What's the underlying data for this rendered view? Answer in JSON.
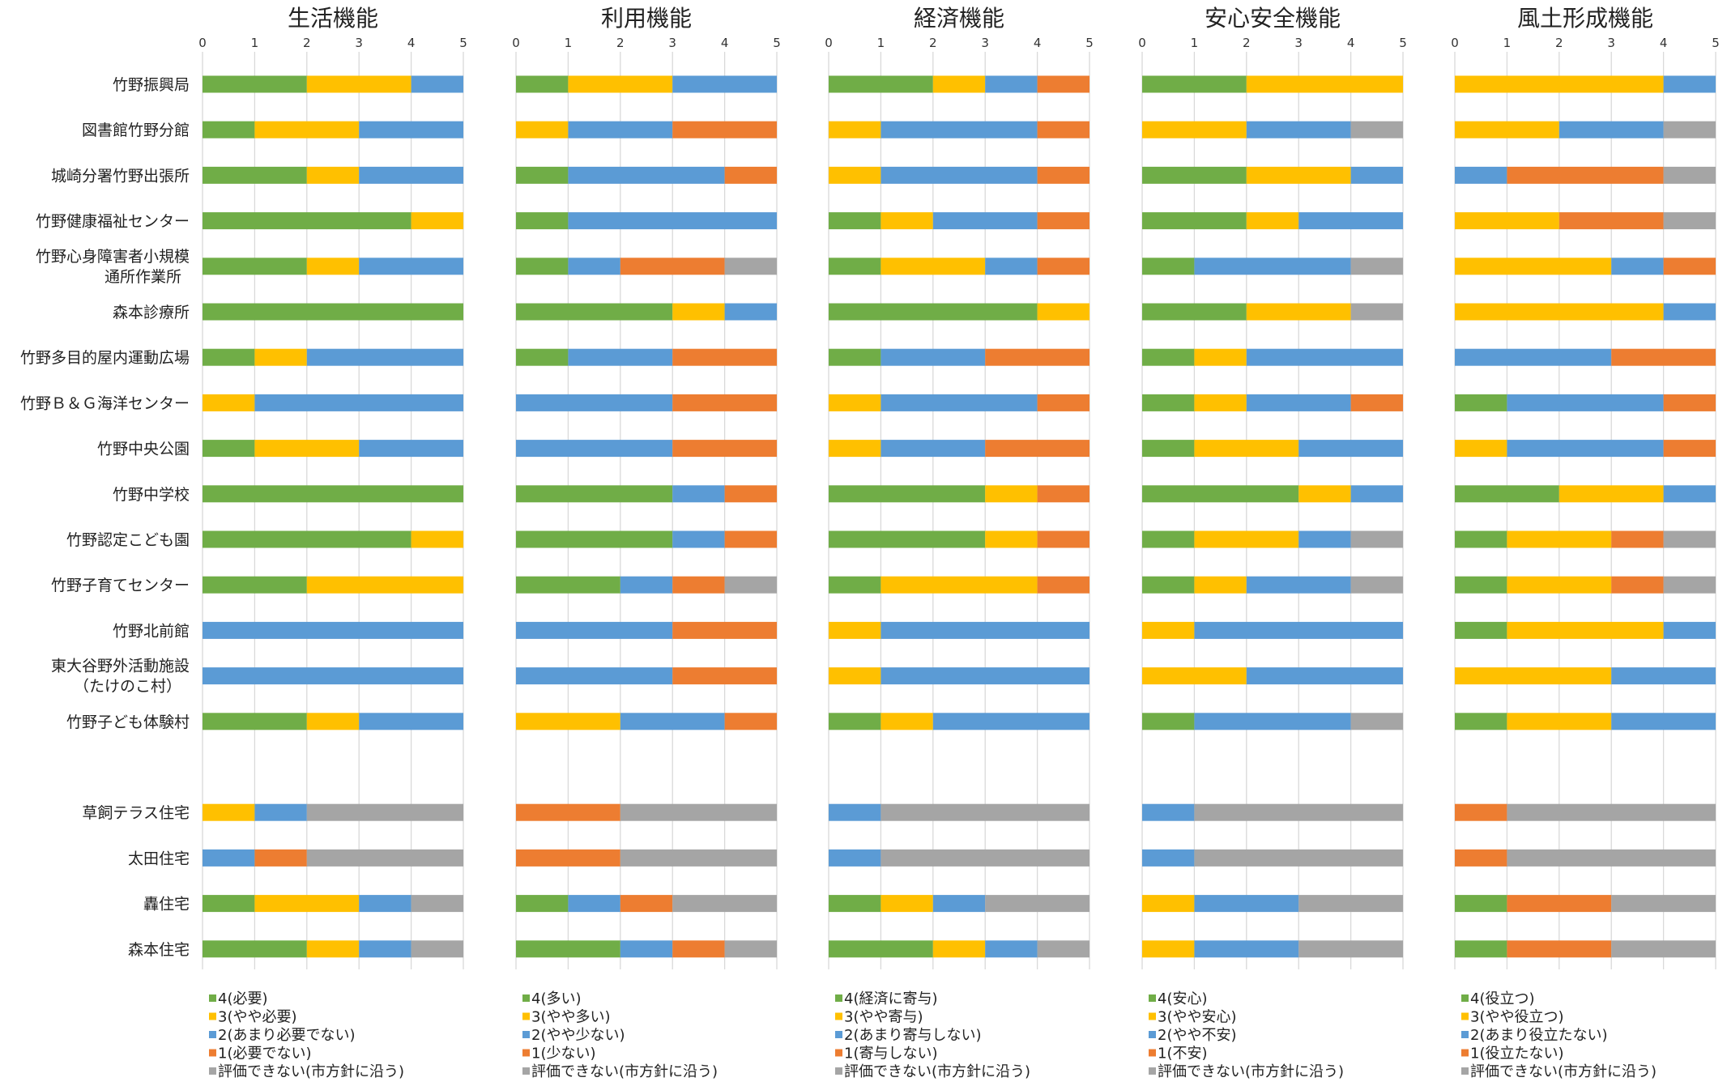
{
  "chart_data": {
    "type": "bar",
    "orientation": "horizontal",
    "stacked": true,
    "xlim": [
      0,
      5
    ],
    "ticks": [
      0,
      1,
      2,
      3,
      4,
      5
    ],
    "grid": true,
    "legend_position": "bottom",
    "colors": {
      "c4": "#70ad47",
      "c3": "#ffc000",
      "c2": "#5b9bd5",
      "c1": "#ed7d31",
      "na": "#a5a5a5"
    },
    "categories": [
      [
        "竹野振興局"
      ],
      [
        "図書館竹野分館"
      ],
      [
        "城崎分署竹野出張所"
      ],
      [
        "竹野健康福祉センター"
      ],
      [
        "竹野心身障害者小規模",
        "通所作業所"
      ],
      [
        "森本診療所"
      ],
      [
        "竹野多目的屋内運動広場"
      ],
      [
        "竹野Ｂ＆Ｇ海洋センター"
      ],
      [
        "竹野中央公園"
      ],
      [
        "竹野中学校"
      ],
      [
        "竹野認定こども園"
      ],
      [
        "竹野子育てセンター"
      ],
      [
        "竹野北前館"
      ],
      [
        "東大谷野外活動施設",
        "（たけのこ村）"
      ],
      [
        "竹野子ども体験村"
      ],
      [
        ""
      ],
      [
        "草飼テラス住宅"
      ],
      [
        "太田住宅"
      ],
      [
        "轟住宅"
      ],
      [
        "森本住宅"
      ]
    ],
    "panels": [
      {
        "title": "生活機能",
        "legend": [
          "4(必要)",
          "3(やや必要)",
          "2(あまり必要でない)",
          "1(必要でない)",
          "評価できない(市方針に沿う)"
        ],
        "data": [
          [
            2,
            2,
            1,
            0,
            0
          ],
          [
            1,
            2,
            2,
            0,
            0
          ],
          [
            2,
            1,
            2,
            0,
            0
          ],
          [
            4,
            1,
            0,
            0,
            0
          ],
          [
            2,
            1,
            2,
            0,
            0
          ],
          [
            5,
            0,
            0,
            0,
            0
          ],
          [
            1,
            1,
            3,
            0,
            0
          ],
          [
            0,
            1,
            4,
            0,
            0
          ],
          [
            1,
            2,
            2,
            0,
            0
          ],
          [
            5,
            0,
            0,
            0,
            0
          ],
          [
            4,
            1,
            0,
            0,
            0
          ],
          [
            2,
            3,
            0,
            0,
            0
          ],
          [
            0,
            0,
            5,
            0,
            0
          ],
          [
            0,
            0,
            5,
            0,
            0
          ],
          [
            2,
            1,
            2,
            0,
            0
          ],
          null,
          [
            0,
            1,
            1,
            0,
            3
          ],
          [
            0,
            0,
            1,
            1,
            3
          ],
          [
            1,
            2,
            1,
            0,
            1
          ],
          [
            2,
            1,
            1,
            0,
            1
          ]
        ]
      },
      {
        "title": "利用機能",
        "legend": [
          "4(多い)",
          "3(やや多い)",
          "2(やや少ない)",
          "1(少ない)",
          "評価できない(市方針に沿う)"
        ],
        "data": [
          [
            1,
            2,
            2,
            0,
            0
          ],
          [
            0,
            1,
            2,
            2,
            0
          ],
          [
            1,
            0,
            3,
            1,
            0
          ],
          [
            1,
            0,
            4,
            0,
            0
          ],
          [
            1,
            0,
            1,
            2,
            1
          ],
          [
            3,
            1,
            1,
            0,
            0
          ],
          [
            1,
            0,
            2,
            2,
            0
          ],
          [
            0,
            0,
            3,
            2,
            0
          ],
          [
            0,
            0,
            3,
            2,
            0
          ],
          [
            3,
            0,
            1,
            1,
            0
          ],
          [
            3,
            0,
            1,
            1,
            0
          ],
          [
            2,
            0,
            1,
            1,
            1
          ],
          [
            0,
            0,
            3,
            2,
            0
          ],
          [
            0,
            0,
            3,
            2,
            0
          ],
          [
            0,
            2,
            2,
            1,
            0
          ],
          null,
          [
            0,
            0,
            0,
            2,
            3
          ],
          [
            0,
            0,
            0,
            2,
            3
          ],
          [
            1,
            0,
            1,
            1,
            2
          ],
          [
            2,
            0,
            1,
            1,
            1
          ]
        ]
      },
      {
        "title": "経済機能",
        "legend": [
          "4(経済に寄与)",
          "3(やや寄与)",
          "2(あまり寄与しない)",
          "1(寄与しない)",
          "評価できない(市方針に沿う)"
        ],
        "data": [
          [
            2,
            1,
            1,
            1,
            0
          ],
          [
            0,
            1,
            3,
            1,
            0
          ],
          [
            0,
            1,
            3,
            1,
            0
          ],
          [
            1,
            1,
            2,
            1,
            0
          ],
          [
            1,
            2,
            1,
            1,
            0
          ],
          [
            4,
            1,
            0,
            0,
            0
          ],
          [
            1,
            0,
            2,
            2,
            0
          ],
          [
            0,
            1,
            3,
            1,
            0
          ],
          [
            0,
            1,
            2,
            2,
            0
          ],
          [
            3,
            1,
            0,
            1,
            0
          ],
          [
            3,
            1,
            0,
            1,
            0
          ],
          [
            1,
            3,
            0,
            1,
            0
          ],
          [
            0,
            1,
            4,
            0,
            0
          ],
          [
            0,
            1,
            4,
            0,
            0
          ],
          [
            1,
            1,
            3,
            0,
            0
          ],
          null,
          [
            0,
            0,
            1,
            0,
            4
          ],
          [
            0,
            0,
            1,
            0,
            4
          ],
          [
            1,
            1,
            1,
            0,
            2
          ],
          [
            2,
            1,
            1,
            0,
            1
          ]
        ]
      },
      {
        "title": "安心安全機能",
        "legend": [
          "4(安心)",
          "3(やや安心)",
          "2(やや不安)",
          "1(不安)",
          "評価できない(市方針に沿う)"
        ],
        "data": [
          [
            2,
            3,
            0,
            0,
            0
          ],
          [
            0,
            2,
            2,
            0,
            1
          ],
          [
            2,
            2,
            1,
            0,
            0
          ],
          [
            2,
            1,
            2,
            0,
            0
          ],
          [
            1,
            0,
            3,
            0,
            1
          ],
          [
            2,
            2,
            0,
            0,
            1
          ],
          [
            1,
            1,
            3,
            0,
            0
          ],
          [
            1,
            1,
            2,
            1,
            0
          ],
          [
            1,
            2,
            2,
            0,
            0
          ],
          [
            3,
            1,
            1,
            0,
            0
          ],
          [
            1,
            2,
            1,
            0,
            1
          ],
          [
            1,
            1,
            2,
            0,
            1
          ],
          [
            0,
            1,
            4,
            0,
            0
          ],
          [
            0,
            2,
            3,
            0,
            0
          ],
          [
            1,
            0,
            3,
            0,
            1
          ],
          null,
          [
            0,
            0,
            1,
            0,
            4
          ],
          [
            0,
            0,
            1,
            0,
            4
          ],
          [
            0,
            1,
            2,
            0,
            2
          ],
          [
            0,
            1,
            2,
            0,
            2
          ]
        ]
      },
      {
        "title": "風土形成機能",
        "legend": [
          "4(役立つ)",
          "3(やや役立つ)",
          "2(あまり役立たない)",
          "1(役立たない)",
          "評価できない(市方針に沿う)"
        ],
        "data": [
          [
            0,
            4,
            1,
            0,
            0
          ],
          [
            0,
            2,
            2,
            0,
            1
          ],
          [
            0,
            0,
            1,
            3,
            1
          ],
          [
            0,
            2,
            0,
            2,
            1
          ],
          [
            0,
            3,
            1,
            1,
            0
          ],
          [
            0,
            4,
            1,
            0,
            0
          ],
          [
            0,
            0,
            3,
            2,
            0
          ],
          [
            1,
            0,
            3,
            1,
            0
          ],
          [
            0,
            1,
            3,
            1,
            0
          ],
          [
            2,
            2,
            1,
            0,
            0
          ],
          [
            1,
            2,
            0,
            1,
            1
          ],
          [
            1,
            2,
            0,
            1,
            1
          ],
          [
            1,
            3,
            1,
            0,
            0
          ],
          [
            0,
            3,
            2,
            0,
            0
          ],
          [
            1,
            2,
            2,
            0,
            0
          ],
          null,
          [
            0,
            0,
            0,
            1,
            4
          ],
          [
            0,
            0,
            0,
            1,
            4
          ],
          [
            1,
            0,
            0,
            2,
            2
          ],
          [
            1,
            0,
            0,
            2,
            2
          ]
        ]
      }
    ]
  }
}
